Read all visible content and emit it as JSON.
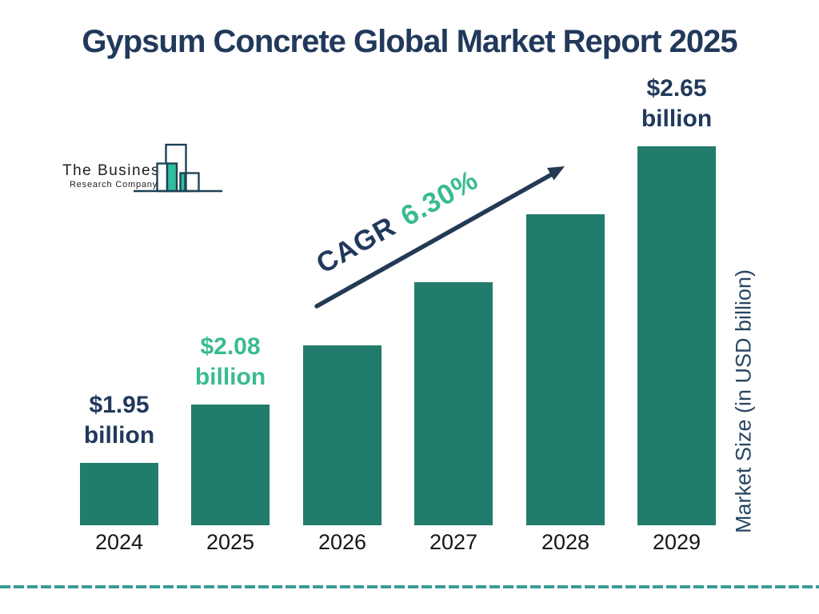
{
  "title": "Gypsum Concrete Global Market Report 2025",
  "logo": {
    "line1": "The Business",
    "line2": "Research Company"
  },
  "chart_data": {
    "type": "bar",
    "title": "Gypsum Concrete Global Market Report 2025",
    "categories": [
      "2024",
      "2025",
      "2026",
      "2027",
      "2028",
      "2029"
    ],
    "values": [
      1.95,
      2.08,
      2.21,
      2.35,
      2.5,
      2.65
    ],
    "unit": "USD billion",
    "ylabel": "Market Size (in USD billion)",
    "xlabel": "",
    "grid": false,
    "legend": "none",
    "ylim": [
      1.8125,
      2.65
    ],
    "bar_color": "#217C6C",
    "value_labels": [
      {
        "index": 0,
        "lines": [
          "$1.95",
          "billion"
        ],
        "color": "#21395B"
      },
      {
        "index": 1,
        "lines": [
          "$2.08",
          "billion"
        ],
        "color": "#3ABB8E"
      },
      {
        "index": 5,
        "lines": [
          "$2.65",
          "billion"
        ],
        "color": "#21395B"
      }
    ],
    "cagr": {
      "label": "CAGR",
      "value": "6.30%"
    }
  },
  "colors": {
    "navy": "#21395B",
    "accent_green": "#3ABB8E",
    "bar_green": "#217C6C",
    "logo_green": "#2FBF9D",
    "logo_outline": "#1C4356",
    "divider_teal": "#3A9C96"
  }
}
